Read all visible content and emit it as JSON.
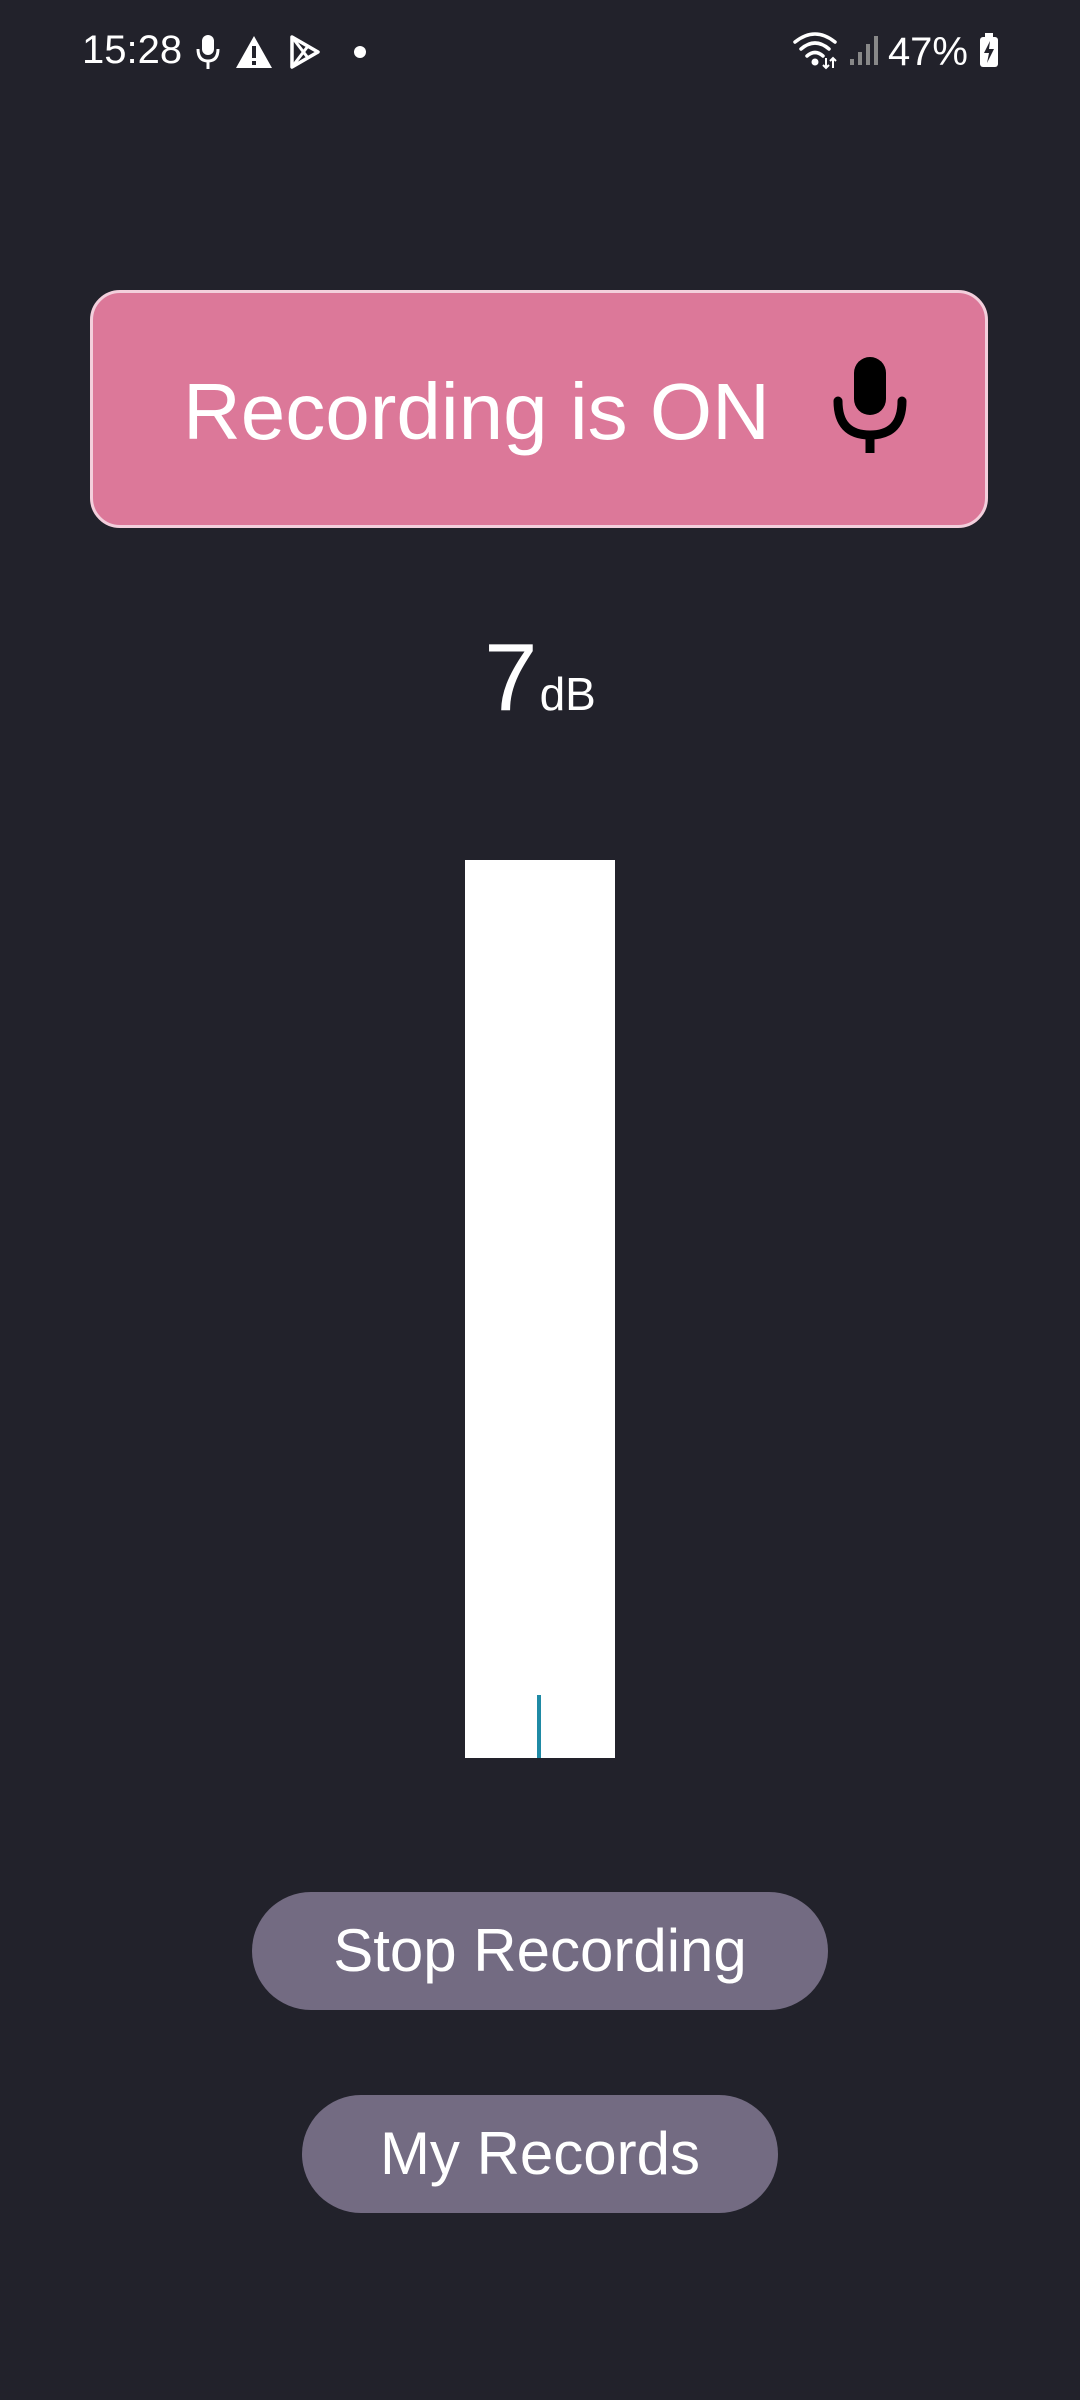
{
  "status_bar": {
    "time": "15:28",
    "battery": "47%",
    "left_icons": [
      "mic-icon",
      "warning-icon",
      "play-store-icon",
      "dot-icon"
    ],
    "right_icons": [
      "wifi-icon",
      "signal-icon",
      "battery-charging-icon"
    ]
  },
  "recording_banner": {
    "label": "Recording is ON",
    "icon": "mic-icon",
    "color": "#dc7899"
  },
  "meter": {
    "value": "7",
    "unit": "dB",
    "level_fraction": 0.07,
    "marker_color": "#1f8aa5"
  },
  "buttons": {
    "stop_label": "Stop Recording",
    "records_label": "My Records",
    "color": "#736b82"
  },
  "colors": {
    "background": "#22222b"
  }
}
